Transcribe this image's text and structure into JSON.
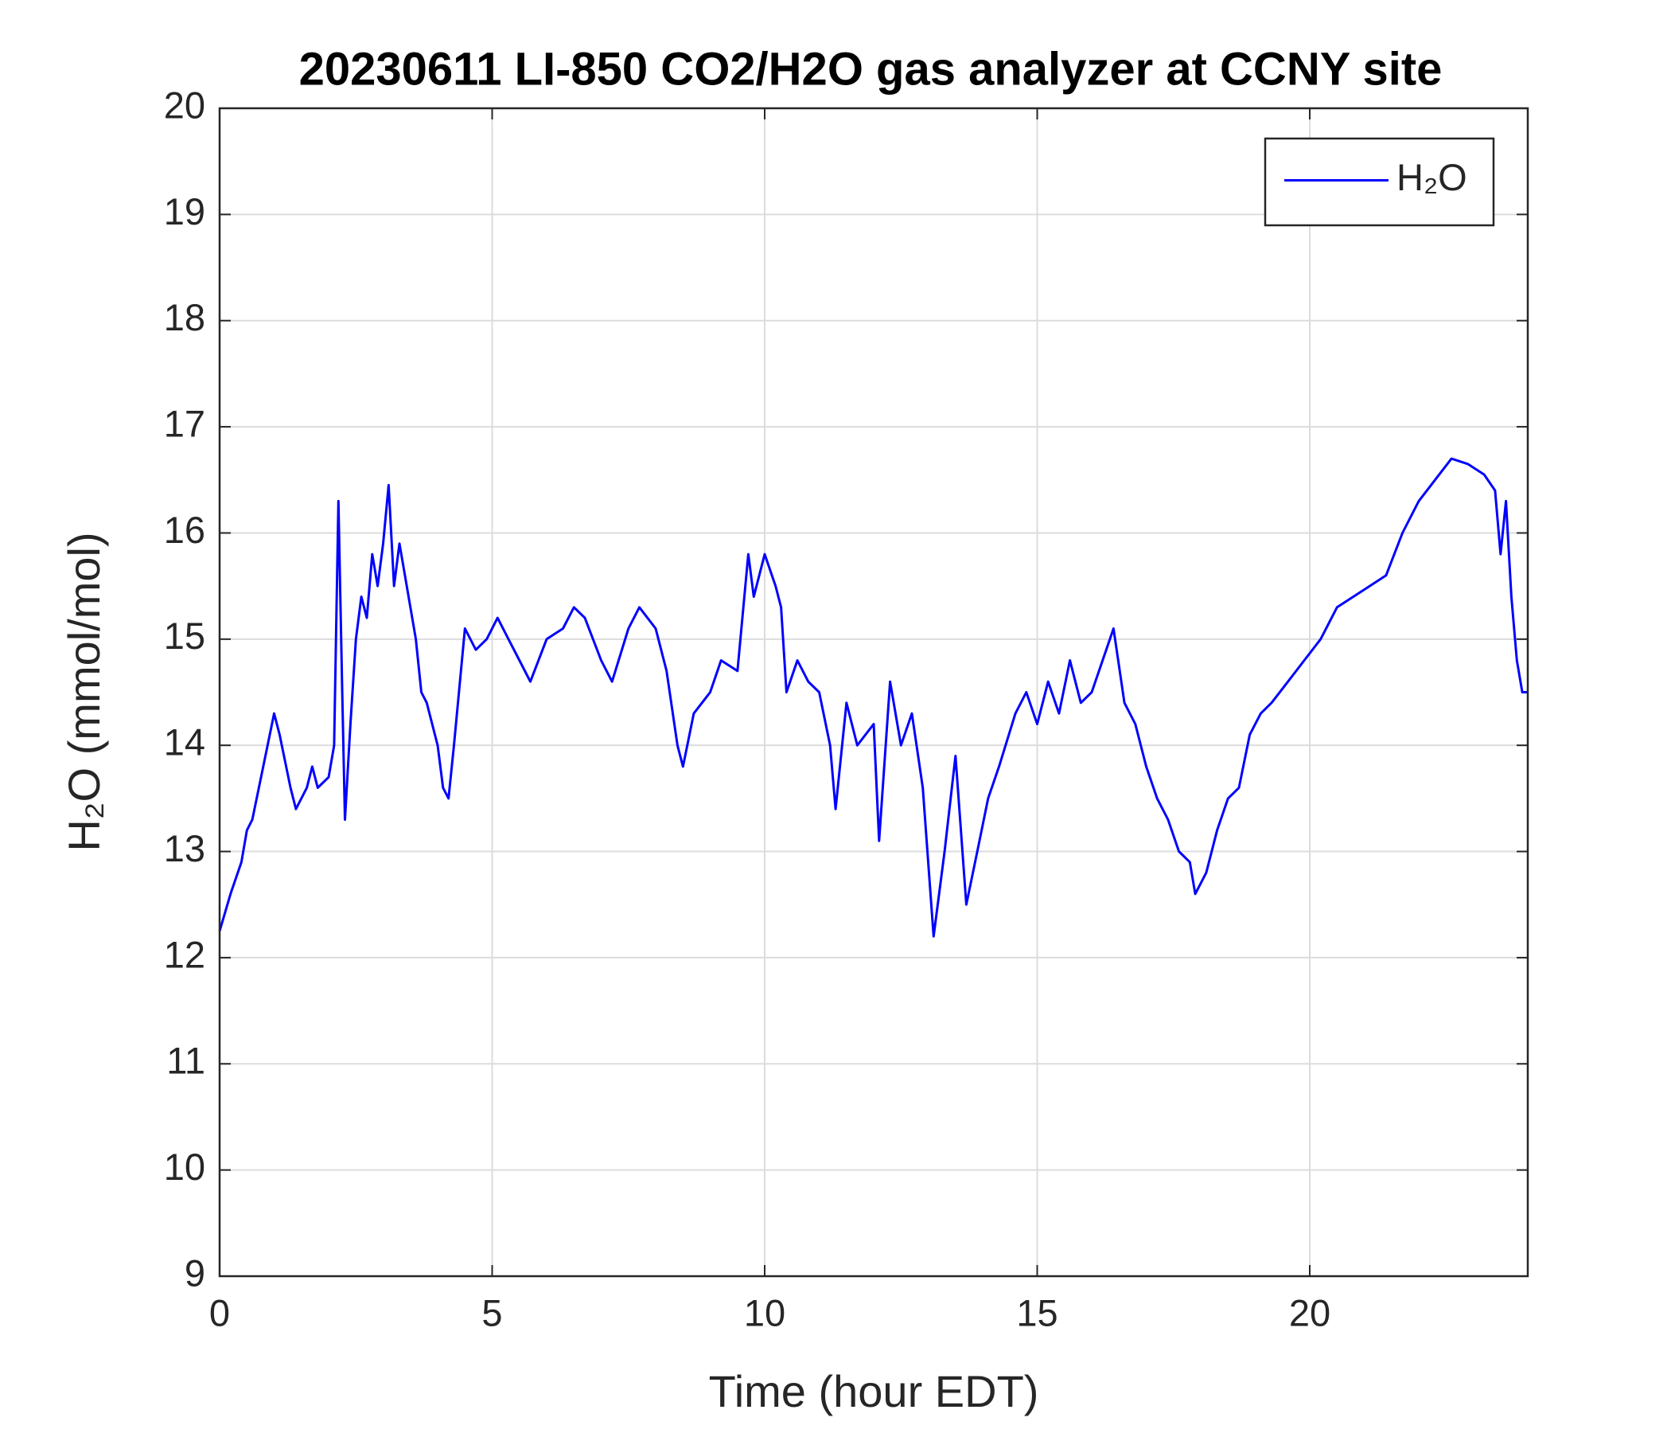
{
  "chart_data": {
    "type": "line",
    "title": "20230611 LI-850 CO2/H2O gas analyzer at CCNY site",
    "xlabel": "Time (hour EDT)",
    "ylabel": "H₂O (mmol/mol)",
    "x": [
      0,
      0.2,
      0.4,
      0.5,
      0.6,
      0.8,
      1.0,
      1.1,
      1.3,
      1.4,
      1.6,
      1.7,
      1.8,
      2.0,
      2.1,
      2.18,
      2.25,
      2.3,
      2.4,
      2.5,
      2.6,
      2.7,
      2.8,
      2.9,
      3.0,
      3.1,
      3.2,
      3.3,
      3.4,
      3.6,
      3.7,
      3.8,
      4.0,
      4.1,
      4.2,
      4.3,
      4.5,
      4.7,
      4.9,
      5.1,
      5.3,
      5.5,
      5.7,
      6.0,
      6.3,
      6.5,
      6.7,
      7.0,
      7.2,
      7.5,
      7.7,
      8.0,
      8.2,
      8.4,
      8.5,
      8.7,
      9.0,
      9.2,
      9.5,
      9.7,
      9.8,
      10.0,
      10.2,
      10.3,
      10.4,
      10.6,
      10.8,
      11.0,
      11.2,
      11.3,
      11.5,
      11.7,
      12.0,
      12.1,
      12.3,
      12.5,
      12.7,
      12.9,
      13.1,
      13.3,
      13.5,
      13.7,
      13.9,
      14.1,
      14.3,
      14.6,
      14.8,
      15.0,
      15.2,
      15.4,
      15.6,
      15.8,
      16.0,
      16.2,
      16.4,
      16.6,
      16.8,
      17.0,
      17.2,
      17.4,
      17.6,
      17.8,
      17.9,
      18.1,
      18.3,
      18.5,
      18.7,
      18.9,
      19.1,
      19.3,
      19.6,
      19.9,
      20.2,
      20.5,
      20.8,
      21.1,
      21.4,
      21.7,
      22.0,
      22.3,
      22.6,
      22.9,
      23.2,
      23.4,
      23.5,
      23.6,
      23.7,
      23.8,
      23.9,
      24.0
    ],
    "series": [
      {
        "name": "H₂O",
        "color": "#0000ff",
        "values": [
          12.25,
          12.6,
          12.9,
          13.2,
          13.3,
          13.8,
          14.3,
          14.1,
          13.6,
          13.4,
          13.6,
          13.8,
          13.6,
          13.7,
          14.0,
          16.3,
          14.5,
          13.3,
          14.2,
          15.0,
          15.4,
          15.2,
          15.8,
          15.5,
          15.9,
          16.45,
          15.5,
          15.9,
          15.6,
          15.0,
          14.5,
          14.4,
          14.0,
          13.6,
          13.5,
          14.0,
          15.1,
          14.9,
          15.0,
          15.2,
          15.0,
          14.8,
          14.6,
          15.0,
          15.1,
          15.3,
          15.2,
          14.8,
          14.6,
          15.1,
          15.3,
          15.1,
          14.7,
          14.0,
          13.8,
          14.3,
          14.5,
          14.8,
          14.7,
          15.8,
          15.4,
          15.8,
          15.5,
          15.3,
          14.5,
          14.8,
          14.6,
          14.5,
          14.0,
          13.4,
          14.4,
          14.0,
          14.2,
          13.1,
          14.6,
          14.0,
          14.3,
          13.6,
          12.2,
          13.0,
          13.9,
          12.5,
          13.0,
          13.5,
          13.8,
          14.3,
          14.5,
          14.2,
          14.6,
          14.3,
          14.8,
          14.4,
          14.5,
          14.8,
          15.1,
          14.4,
          14.2,
          13.8,
          13.5,
          13.3,
          13.0,
          12.9,
          12.6,
          12.8,
          13.2,
          13.5,
          13.6,
          14.1,
          14.3,
          14.4,
          14.6,
          14.8,
          15.0,
          15.3,
          15.4,
          15.5,
          15.6,
          16.0,
          16.3,
          16.5,
          16.7,
          16.65,
          16.55,
          16.4,
          15.8,
          16.3,
          15.4,
          14.8,
          14.5,
          14.5
        ]
      }
    ],
    "xlim": [
      0,
      24
    ],
    "xticks": [
      0,
      5,
      10,
      15,
      20
    ],
    "ylim": [
      9,
      20
    ],
    "yticks": [
      9,
      10,
      11,
      12,
      13,
      14,
      15,
      16,
      17,
      18,
      19,
      20
    ],
    "grid": true,
    "legend": "upper right"
  }
}
